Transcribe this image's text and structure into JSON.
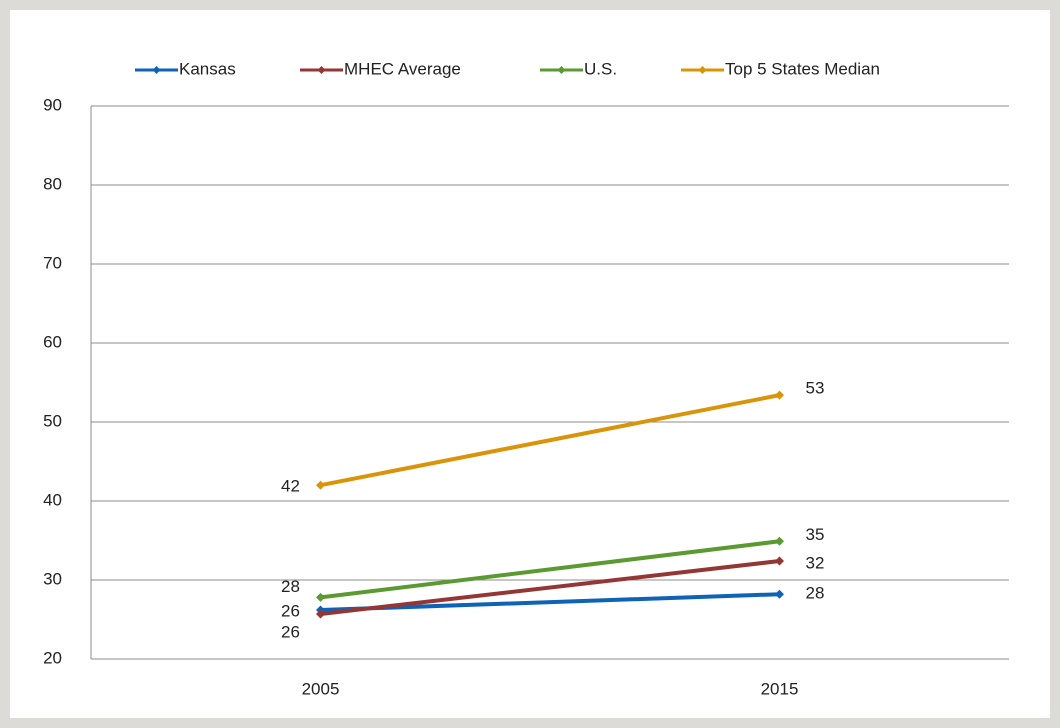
{
  "chart_data": {
    "type": "line",
    "categories": [
      "2005",
      "2015"
    ],
    "series": [
      {
        "name": "Kansas",
        "color": "#0f63b6",
        "values": [
          26.2,
          28.2
        ],
        "value_labels": [
          "26",
          "28"
        ]
      },
      {
        "name": "MHEC Average",
        "color": "#943634",
        "values": [
          25.7,
          32.4
        ],
        "value_labels": [
          "26",
          "32"
        ]
      },
      {
        "name": "U.S.",
        "color": "#5b9a30",
        "values": [
          27.8,
          34.9
        ],
        "value_labels": [
          "28",
          "35"
        ]
      },
      {
        "name": "Top 5 States Median",
        "color": "#d9940a",
        "values": [
          42.0,
          53.4
        ],
        "value_labels": [
          "42",
          "53"
        ]
      }
    ],
    "ylim": [
      20,
      90
    ],
    "yticks": [
      20,
      30,
      40,
      50,
      60,
      70,
      80,
      90
    ],
    "grid": true,
    "legend": "top"
  }
}
